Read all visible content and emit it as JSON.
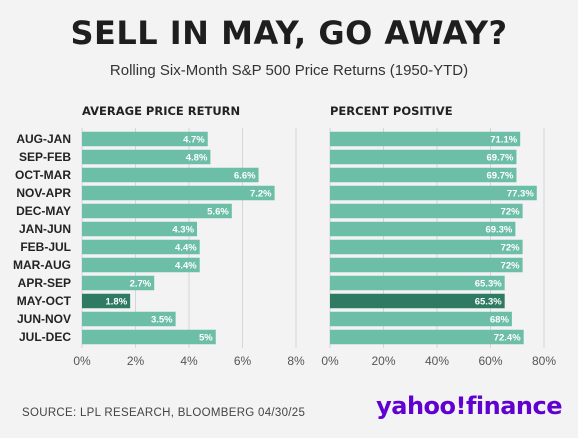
{
  "title": "SELL IN MAY, GO AWAY?",
  "subtitle": "Rolling Six-Month S&P 500 Price Returns (1950-YTD)",
  "source": "SOURCE: LPL RESEARCH, BLOOMBERG 04/30/25",
  "brand": "yahoo!finance",
  "colors": {
    "bar": "#6cbea6",
    "highlight": "#2f7a62",
    "grid": "#d6d6d6"
  },
  "chart_data": [
    {
      "type": "bar",
      "orientation": "horizontal",
      "title": "AVERAGE PRICE RETURN",
      "categories": [
        "AUG-JAN",
        "SEP-FEB",
        "OCT-MAR",
        "NOV-APR",
        "DEC-MAY",
        "JAN-JUN",
        "FEB-JUL",
        "MAR-AUG",
        "APR-SEP",
        "MAY-OCT",
        "JUN-NOV",
        "JUL-DEC"
      ],
      "values": [
        4.7,
        4.8,
        6.6,
        7.2,
        5.6,
        4.3,
        4.4,
        4.4,
        2.7,
        1.8,
        3.5,
        5
      ],
      "labels": [
        "4.7%",
        "4.8%",
        "6.6%",
        "7.2%",
        "5.6%",
        "4.3%",
        "4.4%",
        "4.4%",
        "2.7%",
        "1.8%",
        "3.5%",
        "5%"
      ],
      "highlight": "MAY-OCT",
      "xlim": [
        0,
        8
      ],
      "ticks": [
        "0%",
        "2%",
        "4%",
        "6%",
        "8%"
      ],
      "tick_values": [
        0,
        2,
        4,
        6,
        8
      ],
      "grid": true
    },
    {
      "type": "bar",
      "orientation": "horizontal",
      "title": "PERCENT POSITIVE",
      "categories": [
        "AUG-JAN",
        "SEP-FEB",
        "OCT-MAR",
        "NOV-APR",
        "DEC-MAY",
        "JAN-JUN",
        "FEB-JUL",
        "MAR-AUG",
        "APR-SEP",
        "MAY-OCT",
        "JUN-NOV",
        "JUL-DEC"
      ],
      "values": [
        71.1,
        69.7,
        69.7,
        77.3,
        72,
        69.3,
        72,
        72,
        65.3,
        65.3,
        68,
        72.4
      ],
      "labels": [
        "71.1%",
        "69.7%",
        "69.7%",
        "77.3%",
        "72%",
        "69.3%",
        "72%",
        "72%",
        "65.3%",
        "65.3%",
        "68%",
        "72.4%"
      ],
      "highlight": "MAY-OCT",
      "xlim": [
        0,
        80
      ],
      "ticks": [
        "0%",
        "20%",
        "40%",
        "60%",
        "80%"
      ],
      "tick_values": [
        0,
        20,
        40,
        60,
        80
      ],
      "grid": true
    }
  ]
}
